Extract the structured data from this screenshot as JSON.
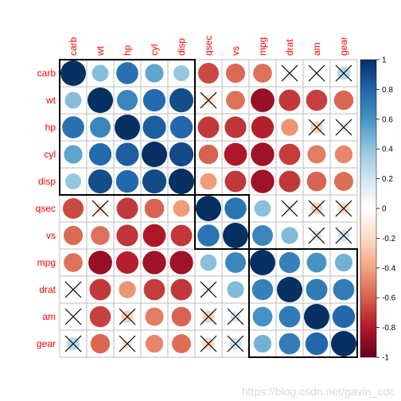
{
  "chart_data": {
    "type": "heatmap",
    "style": "correlation-circles",
    "variables": [
      "carb",
      "wt",
      "hp",
      "cyl",
      "disp",
      "qsec",
      "vs",
      "mpg",
      "drat",
      "am",
      "gear"
    ],
    "matrix": [
      [
        1.0,
        0.43,
        0.75,
        0.53,
        0.39,
        -0.66,
        -0.57,
        -0.55,
        -0.09,
        0.06,
        0.27
      ],
      [
        0.43,
        1.0,
        0.66,
        0.78,
        0.89,
        -0.17,
        -0.55,
        -0.87,
        -0.71,
        -0.69,
        -0.58
      ],
      [
        0.75,
        0.66,
        1.0,
        0.83,
        0.79,
        -0.71,
        -0.72,
        -0.78,
        -0.45,
        -0.24,
        -0.13
      ],
      [
        0.53,
        0.78,
        0.83,
        1.0,
        0.9,
        -0.59,
        -0.81,
        -0.85,
        -0.7,
        -0.52,
        -0.49
      ],
      [
        0.39,
        0.89,
        0.79,
        0.9,
        1.0,
        -0.43,
        -0.71,
        -0.85,
        -0.71,
        -0.59,
        -0.56
      ],
      [
        -0.66,
        -0.17,
        -0.71,
        -0.59,
        -0.43,
        1.0,
        0.74,
        0.42,
        0.09,
        -0.23,
        -0.21
      ],
      [
        -0.57,
        -0.55,
        -0.72,
        -0.81,
        -0.71,
        0.74,
        1.0,
        0.66,
        0.44,
        0.17,
        0.21
      ],
      [
        -0.55,
        -0.87,
        -0.78,
        -0.85,
        -0.85,
        0.42,
        0.66,
        1.0,
        0.68,
        0.6,
        0.48
      ],
      [
        -0.09,
        -0.71,
        -0.45,
        -0.7,
        -0.71,
        0.09,
        0.44,
        0.68,
        1.0,
        0.71,
        0.7
      ],
      [
        0.06,
        -0.69,
        -0.24,
        -0.52,
        -0.59,
        -0.23,
        0.17,
        0.6,
        0.71,
        1.0,
        0.79
      ],
      [
        0.27,
        -0.58,
        -0.13,
        -0.49,
        -0.56,
        -0.21,
        0.21,
        0.48,
        0.7,
        0.79,
        1.0
      ]
    ],
    "insignificant": [
      [
        0,
        8
      ],
      [
        0,
        9
      ],
      [
        0,
        10
      ],
      [
        1,
        5
      ],
      [
        2,
        9
      ],
      [
        2,
        10
      ],
      [
        5,
        1
      ],
      [
        5,
        8
      ],
      [
        5,
        9
      ],
      [
        5,
        10
      ],
      [
        6,
        9
      ],
      [
        6,
        10
      ],
      [
        8,
        0
      ],
      [
        8,
        5
      ],
      [
        9,
        0
      ],
      [
        9,
        2
      ],
      [
        9,
        5
      ],
      [
        9,
        6
      ],
      [
        10,
        0
      ],
      [
        10,
        2
      ],
      [
        10,
        5
      ],
      [
        10,
        6
      ]
    ],
    "clusters": [
      [
        0,
        4
      ],
      [
        5,
        6
      ],
      [
        7,
        10
      ]
    ],
    "colorbar": {
      "range": [
        -1,
        1
      ],
      "ticks": [
        1,
        0.8,
        0.6,
        0.4,
        0.2,
        0,
        -0.2,
        -0.4,
        -0.6,
        -0.8,
        -1
      ],
      "tick_labels": [
        "1",
        "0.8",
        "0.6",
        "0.4",
        "0.2",
        "0",
        "-0.2",
        "-0.4",
        "-0.6",
        "-0.8",
        "-1"
      ],
      "color_stops": [
        "#67001f",
        "#b2182b",
        "#d6604d",
        "#f4a582",
        "#fddbc7",
        "#ffffff",
        "#d1e5f0",
        "#92c5de",
        "#4393c3",
        "#2166ac",
        "#053061"
      ]
    },
    "colors": {
      "label": "#ff0000",
      "grid": "#bebebe",
      "cluster_box": "#000000",
      "cross": "#000000"
    }
  },
  "watermark": "https://blog.csdn.net/gavin_cdc"
}
